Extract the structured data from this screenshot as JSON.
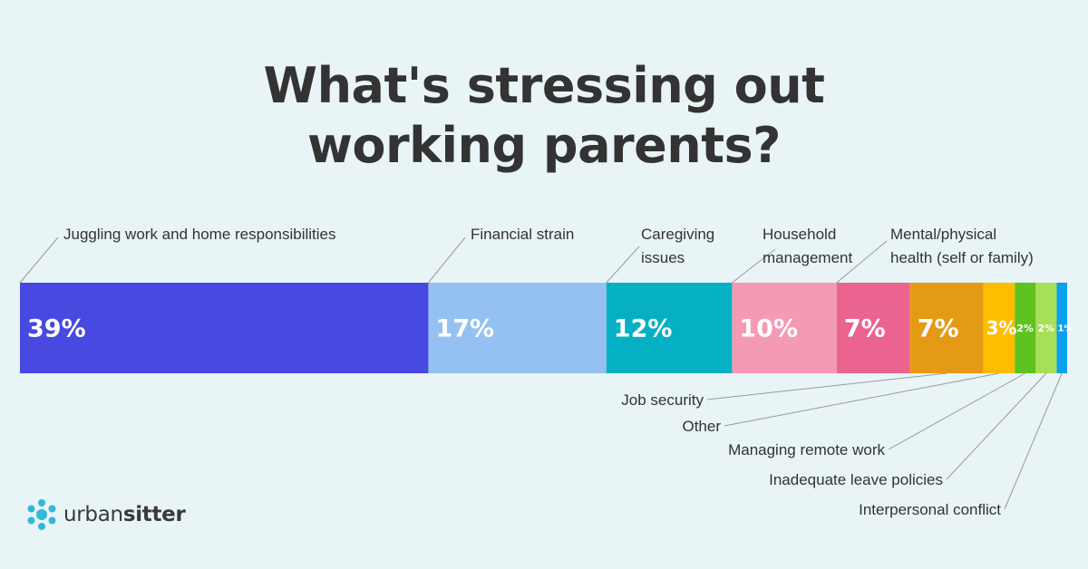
{
  "title_lines": [
    "What's stressing out",
    "working parents?"
  ],
  "brand": {
    "part1": "urban",
    "part2": "sitter"
  },
  "colors": {
    "background": "#e9f4f7",
    "brand": "#33b8d6"
  },
  "chart_data": {
    "type": "bar",
    "orientation": "horizontal-stacked",
    "title": "What's stressing out working parents?",
    "unit": "%",
    "segments": [
      {
        "label": "Juggling work and home responsibilities",
        "value": 39,
        "display": "39%",
        "color": "#4849e0"
      },
      {
        "label": "Financial strain",
        "value": 17,
        "display": "17%",
        "color": "#94c1f2"
      },
      {
        "label": "Caregiving issues",
        "value": 12,
        "display": "12%",
        "color": "#05b0c4"
      },
      {
        "label": "Household management",
        "value": 10,
        "display": "10%",
        "color": "#f49ab5"
      },
      {
        "label": "Mental/physical health (self or family)",
        "value": 7,
        "display": "7%",
        "color": "#eb6490"
      },
      {
        "label": "Job security",
        "value": 7,
        "display": "7%",
        "color": "#e59a16"
      },
      {
        "label": "Other",
        "value": 3,
        "display": "3%",
        "color": "#ffbd00"
      },
      {
        "label": "Managing remote work",
        "value": 2,
        "display": "2%",
        "color": "#5fc21e"
      },
      {
        "label": "Inadequate leave policies",
        "value": 2,
        "display": "2%",
        "color": "#a7df58"
      },
      {
        "label": "Interpersonal conflict",
        "value": 1,
        "display": "1%",
        "color": "#0aa0ec"
      }
    ]
  }
}
